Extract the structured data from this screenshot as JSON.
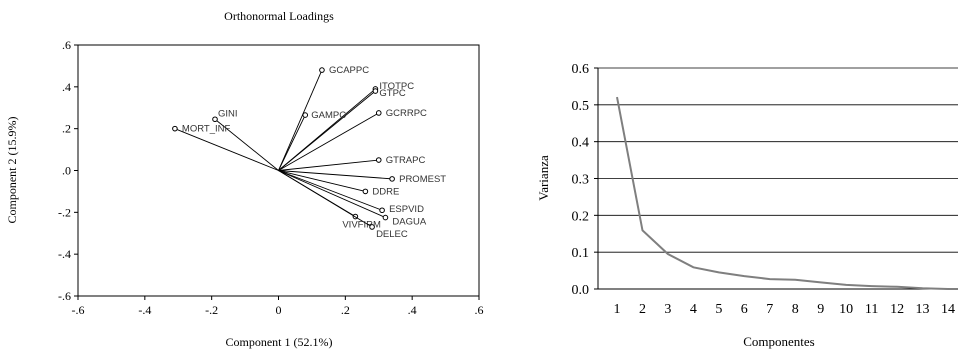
{
  "chart_data": [
    {
      "type": "scatter",
      "subtype": "biplot-loadings",
      "title": "Orthonormal Loadings",
      "xlabel": "Component 1 (52.1%)",
      "ylabel": "Component 2 (15.9%)",
      "xlim": [
        -0.6,
        0.6
      ],
      "ylim": [
        -0.6,
        0.6
      ],
      "xticks": [
        -0.6,
        -0.4,
        -0.2,
        0.0,
        0.2,
        0.4,
        0.6
      ],
      "yticks": [
        -0.6,
        -0.4,
        -0.2,
        0.0,
        0.2,
        0.4,
        0.6
      ],
      "xtick_labels": [
        "-.6",
        "-.4",
        "-.2",
        "0",
        ".2",
        ".4",
        ".6"
      ],
      "ytick_labels": [
        "-.6",
        "-.4",
        "-.2",
        ".0",
        ".2",
        ".4",
        ".6"
      ],
      "grid": false,
      "points": [
        {
          "label": "GCAPPC",
          "x": 0.13,
          "y": 0.48
        },
        {
          "label": "ITOTPC",
          "x": 0.29,
          "y": 0.39
        },
        {
          "label": "GTPC",
          "x": 0.29,
          "y": 0.38
        },
        {
          "label": "GAMPC",
          "x": 0.08,
          "y": 0.265
        },
        {
          "label": "GCRRPC",
          "x": 0.3,
          "y": 0.275
        },
        {
          "label": "GINI",
          "x": -0.19,
          "y": 0.245
        },
        {
          "label": "MORT_INF",
          "x": -0.31,
          "y": 0.2
        },
        {
          "label": "GTRAPC",
          "x": 0.3,
          "y": 0.05
        },
        {
          "label": "PROMEST",
          "x": 0.34,
          "y": -0.04
        },
        {
          "label": "DDRE",
          "x": 0.26,
          "y": -0.1
        },
        {
          "label": "ESPVID",
          "x": 0.31,
          "y": -0.19
        },
        {
          "label": "DAGUA",
          "x": 0.32,
          "y": -0.225
        },
        {
          "label": "VIVFIRM",
          "x": 0.23,
          "y": -0.22
        },
        {
          "label": "DELEC",
          "x": 0.28,
          "y": -0.27
        }
      ]
    },
    {
      "type": "line",
      "title": "",
      "xlabel": "Componentes",
      "ylabel": "Varianza",
      "ylim": [
        0.0,
        0.6
      ],
      "yticks": [
        0.0,
        0.1,
        0.2,
        0.3,
        0.4,
        0.5,
        0.6
      ],
      "ytick_labels": [
        "0.0",
        "0.1",
        "0.2",
        "0.3",
        "0.4",
        "0.5",
        "0.6"
      ],
      "grid": "horizontal",
      "x": [
        1,
        2,
        3,
        4,
        5,
        6,
        7,
        8,
        9,
        10,
        11,
        12,
        13,
        14
      ],
      "series": [
        {
          "name": "",
          "values": [
            0.521,
            0.159,
            0.095,
            0.059,
            0.045,
            0.035,
            0.027,
            0.025,
            0.018,
            0.011,
            0.008,
            0.006,
            0.002,
            0.0
          ],
          "color": "#7f7f7f"
        }
      ]
    }
  ]
}
